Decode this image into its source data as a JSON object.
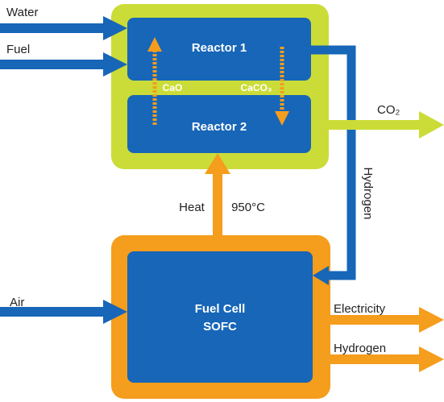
{
  "inputs": {
    "water": "Water",
    "fuel": "Fuel",
    "air": "Air"
  },
  "reactors": {
    "reactor1": "Reactor 1",
    "reactor2": "Reactor 2",
    "cao": "CaO",
    "caco3": "CaCO₃"
  },
  "outputs": {
    "co2": "CO₂",
    "hydrogen_pipe": "Hydrogen",
    "electricity": "Electricity",
    "hydrogen": "Hydrogen"
  },
  "heat": {
    "label": "Heat",
    "temperature": "950°C"
  },
  "fuel_cell": {
    "line1": "Fuel Cell",
    "line2": "SOFC"
  }
}
